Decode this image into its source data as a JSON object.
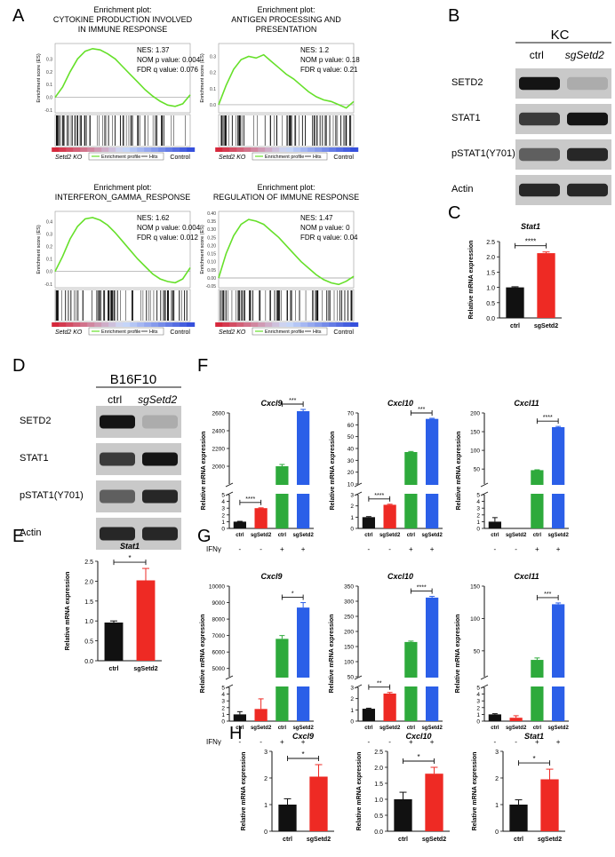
{
  "panels": {
    "A": {
      "letter": "A",
      "plots": [
        {
          "title_lines": [
            "Enrichment plot:",
            "CYTOKINE PRODUCTION INVOLVED",
            "IN IMMUNE RESPONSE"
          ],
          "stats": [
            "NES: 1.37",
            "NOM p value: 0.004",
            "FDR q value: 0.076"
          ],
          "yticks": [
            "0.3",
            "0.2",
            "0.1",
            "0.0",
            "-0.1"
          ],
          "ylabel": "Enrichment score (ES)",
          "curve": [
            0,
            0.08,
            0.2,
            0.3,
            0.36,
            0.38,
            0.37,
            0.34,
            0.3,
            0.24,
            0.18,
            0.12,
            0.06,
            0.01,
            -0.03,
            -0.06,
            -0.07,
            -0.05,
            0.02
          ],
          "ymin": -0.12,
          "ymax": 0.42
        },
        {
          "title_lines": [
            "Enrichment plot:",
            "ANTIGEN PROCESSING AND",
            "PRESENTATION"
          ],
          "stats": [
            "NES: 1.2",
            "NOM p value: 0.18",
            "FDR q value: 0.21"
          ],
          "yticks": [
            "0.3",
            "0.2",
            "0.1",
            "0.0"
          ],
          "ylabel": "Enrichment score (ES)",
          "curve": [
            0,
            0.12,
            0.22,
            0.28,
            0.3,
            0.29,
            0.31,
            0.27,
            0.23,
            0.19,
            0.16,
            0.12,
            0.08,
            0.05,
            0.03,
            0.02,
            0.0,
            -0.02,
            0.02
          ],
          "ymin": -0.05,
          "ymax": 0.38
        },
        {
          "title_lines": [
            "Enrichment plot:",
            "INTERFERON_GAMMA_RESPONSE"
          ],
          "stats": [
            "NES: 1.62",
            "NOM p value: 0.004",
            "FDR q value: 0.012"
          ],
          "yticks": [
            "0.4",
            "0.3",
            "0.2",
            "0.1",
            "0.0",
            "-0.1"
          ],
          "ylabel": "Enrichment score (ES)",
          "curve": [
            0,
            0.12,
            0.26,
            0.36,
            0.42,
            0.43,
            0.41,
            0.37,
            0.31,
            0.24,
            0.17,
            0.1,
            0.04,
            -0.02,
            -0.06,
            -0.08,
            -0.09,
            -0.06,
            0.03
          ],
          "ymin": -0.13,
          "ymax": 0.48
        },
        {
          "title_lines": [
            "Enrichment plot:",
            "REGULATION OF IMMUNE RESPONSE"
          ],
          "stats": [
            "NES: 1.47",
            "NOM p value: 0",
            "FDR q value: 0.04"
          ],
          "yticks": [
            "0.40",
            "0.35",
            "0.30",
            "0.25",
            "0.20",
            "0.15",
            "0.10",
            "0.05",
            "0.00",
            "-0.05"
          ],
          "ylabel": "Enrichment score (ES)",
          "curve": [
            0,
            0.15,
            0.26,
            0.33,
            0.36,
            0.35,
            0.33,
            0.29,
            0.25,
            0.2,
            0.15,
            0.1,
            0.06,
            0.02,
            -0.01,
            -0.03,
            -0.04,
            -0.02,
            0.01
          ],
          "ymin": -0.06,
          "ymax": 0.41
        }
      ],
      "footer": {
        "left": "Setd2 KO",
        "profile": "Enrichment profile",
        "hits": "Hits",
        "right": "Control"
      }
    },
    "B": {
      "letter": "B",
      "cell_line": "KC",
      "lanes": [
        "ctrl",
        "sgSetd2"
      ],
      "rows": [
        "SETD2",
        "STAT1",
        "pSTAT1(Y701)",
        "Actin"
      ]
    },
    "C": {
      "letter": "C"
    },
    "D": {
      "letter": "D",
      "cell_line": "B16F10",
      "lanes": [
        "ctrl",
        "sgSetd2"
      ],
      "rows": [
        "SETD2",
        "STAT1",
        "pSTAT1(Y701)",
        "Actin"
      ]
    },
    "E": {
      "letter": "E"
    },
    "F": {
      "letter": "F"
    },
    "G": {
      "letter": "G"
    },
    "H": {
      "letter": "H"
    }
  },
  "ifn_label": "IFNγ",
  "ifn_signs": [
    "-",
    "-",
    "+",
    "+"
  ],
  "ylabel_mrna": "Relative mRNA expression",
  "colors": {
    "ctrl": "#111111",
    "sg": "#ee2a24",
    "ifn_ctrl": "#2eaa3c",
    "ifn_sg": "#2b5fe8",
    "es_curve": "#66e02a"
  },
  "chart_data": [
    {
      "panel": "C",
      "type": "bar",
      "title": "Stat1",
      "ylabel": "Relative mRNA expression",
      "categories": [
        "ctrl",
        "sgSetd2"
      ],
      "values": [
        1.0,
        2.12
      ],
      "errors": [
        0.02,
        0.04
      ],
      "ylim": [
        0,
        2.5
      ],
      "yticks": [
        "0.0",
        "0.5",
        "1.0",
        "1.5",
        "2.0",
        "2.5"
      ],
      "significance": "****"
    },
    {
      "panel": "E",
      "type": "bar",
      "title": "Stat1",
      "ylabel": "Relative mRNA expression",
      "categories": [
        "ctrl",
        "sgSetd2"
      ],
      "values": [
        0.96,
        2.02
      ],
      "errors": [
        0.04,
        0.3
      ],
      "ylim": [
        0,
        2.5
      ],
      "yticks": [
        "0.0",
        "0.5",
        "1.0",
        "1.5",
        "2.0",
        "2.5"
      ],
      "significance": "*"
    },
    {
      "panel": "F",
      "type": "bar",
      "title": "Cxcl9",
      "ylabel": "Relative mRNA expression",
      "categories": [
        "ctrl",
        "sgSetd2",
        "ctrl",
        "sgSetd2"
      ],
      "values": [
        1,
        3,
        2000,
        2620
      ],
      "errors": [
        0.05,
        0.05,
        20,
        20
      ],
      "lower_ylim": [
        0,
        5
      ],
      "lower_ticks": [
        "0",
        "1",
        "2",
        "3",
        "4",
        "5"
      ],
      "upper_ylim": [
        1800,
        2600
      ],
      "upper_ticks": [
        "2000",
        "2200",
        "2400",
        "2600"
      ],
      "significance": [
        {
          "pair": [
            0,
            1
          ],
          "label": "****"
        },
        {
          "pair": [
            2,
            3
          ],
          "label": "***"
        }
      ]
    },
    {
      "panel": "F",
      "type": "bar",
      "title": "Cxcl10",
      "ylabel": "Relative mRNA expression",
      "categories": [
        "ctrl",
        "sgSetd2",
        "ctrl",
        "sgSetd2"
      ],
      "values": [
        1,
        2.1,
        37,
        65
      ],
      "errors": [
        0.05,
        0.05,
        0.5,
        0.5
      ],
      "lower_ylim": [
        0,
        3
      ],
      "lower_ticks": [
        "0",
        "1",
        "2",
        "3"
      ],
      "upper_ylim": [
        10,
        70
      ],
      "upper_ticks": [
        "10",
        "20",
        "30",
        "40",
        "50",
        "60",
        "70"
      ],
      "significance": [
        {
          "pair": [
            0,
            1
          ],
          "label": "****"
        },
        {
          "pair": [
            2,
            3
          ],
          "label": "***"
        }
      ]
    },
    {
      "panel": "F",
      "type": "bar",
      "title": "Cxcl11",
      "ylabel": "Relative mRNA expression",
      "categories": [
        "ctrl",
        "sgSetd2",
        "ctrl",
        "sgSetd2"
      ],
      "values": [
        1,
        0,
        47,
        162
      ],
      "errors": [
        0.6,
        0,
        1,
        2
      ],
      "lower_ylim": [
        0,
        5
      ],
      "lower_ticks": [
        "0",
        "1",
        "2",
        "3",
        "4",
        "5"
      ],
      "upper_ylim": [
        10,
        200
      ],
      "upper_ticks": [
        "50",
        "100",
        "150",
        "200"
      ],
      "significance": [
        {
          "pair": [
            2,
            3
          ],
          "label": "****"
        }
      ]
    },
    {
      "panel": "G",
      "type": "bar",
      "title": "Cxcl9",
      "ylabel": "Relative mRNA expression",
      "categories": [
        "ctrl",
        "sgSetd2",
        "ctrl",
        "sgSetd2"
      ],
      "values": [
        1,
        1.8,
        6800,
        8700
      ],
      "errors": [
        0.4,
        1.5,
        200,
        300
      ],
      "lower_ylim": [
        0,
        5
      ],
      "lower_ticks": [
        "0",
        "1",
        "2",
        "3",
        "4",
        "5"
      ],
      "upper_ylim": [
        4500,
        10000
      ],
      "upper_ticks": [
        "5000",
        "6000",
        "7000",
        "8000",
        "9000",
        "10000"
      ],
      "significance": [
        {
          "pair": [
            2,
            3
          ],
          "label": "*"
        }
      ]
    },
    {
      "panel": "G",
      "type": "bar",
      "title": "Cxcl10",
      "ylabel": "Relative mRNA expression",
      "categories": [
        "ctrl",
        "sgSetd2",
        "ctrl",
        "sgSetd2"
      ],
      "values": [
        1.1,
        2.45,
        165,
        312
      ],
      "errors": [
        0.05,
        0.1,
        3,
        4
      ],
      "lower_ylim": [
        0,
        3
      ],
      "lower_ticks": [
        "0",
        "1",
        "2",
        "3"
      ],
      "upper_ylim": [
        50,
        350
      ],
      "upper_ticks": [
        "50",
        "100",
        "150",
        "200",
        "250",
        "300",
        "350"
      ],
      "significance": [
        {
          "pair": [
            0,
            1
          ],
          "label": "**"
        },
        {
          "pair": [
            2,
            3
          ],
          "label": "****"
        }
      ]
    },
    {
      "panel": "G",
      "type": "bar",
      "title": "Cxcl11",
      "ylabel": "Relative mRNA expression",
      "categories": [
        "ctrl",
        "sgSetd2",
        "ctrl",
        "sgSetd2"
      ],
      "values": [
        1,
        0.5,
        36,
        122
      ],
      "errors": [
        0.1,
        0.3,
        3,
        2
      ],
      "lower_ylim": [
        0,
        5
      ],
      "lower_ticks": [
        "0",
        "1",
        "2",
        "3",
        "4",
        "5"
      ],
      "upper_ylim": [
        10,
        150
      ],
      "upper_ticks": [
        "50",
        "100",
        "150"
      ],
      "significance": [
        {
          "pair": [
            2,
            3
          ],
          "label": "***"
        }
      ]
    },
    {
      "panel": "H",
      "type": "bar",
      "title": "Cxcl9",
      "ylabel": "Relative mRNA expression",
      "categories": [
        "ctrl",
        "sgSetd2"
      ],
      "values": [
        1.0,
        2.05
      ],
      "errors": [
        0.22,
        0.45
      ],
      "ylim": [
        0,
        3
      ],
      "yticks": [
        "0",
        "1",
        "2",
        "3"
      ],
      "significance": "*"
    },
    {
      "panel": "H",
      "type": "bar",
      "title": "Cxcl10",
      "ylabel": "Relative mRNA expression",
      "categories": [
        "ctrl",
        "sgSetd2"
      ],
      "values": [
        1.0,
        1.8
      ],
      "errors": [
        0.22,
        0.2
      ],
      "ylim": [
        0,
        2.5
      ],
      "yticks": [
        "0.0",
        "0.5",
        "1.0",
        "1.5",
        "2.0",
        "2.5"
      ],
      "significance": "*"
    },
    {
      "panel": "H",
      "type": "bar",
      "title": "Stat1",
      "ylabel": "Relative mRNA expression",
      "categories": [
        "ctrl",
        "sgSetd2"
      ],
      "values": [
        1.0,
        1.95
      ],
      "errors": [
        0.18,
        0.38
      ],
      "ylim": [
        0,
        3
      ],
      "yticks": [
        "0",
        "1",
        "2",
        "3"
      ],
      "significance": "*"
    }
  ]
}
